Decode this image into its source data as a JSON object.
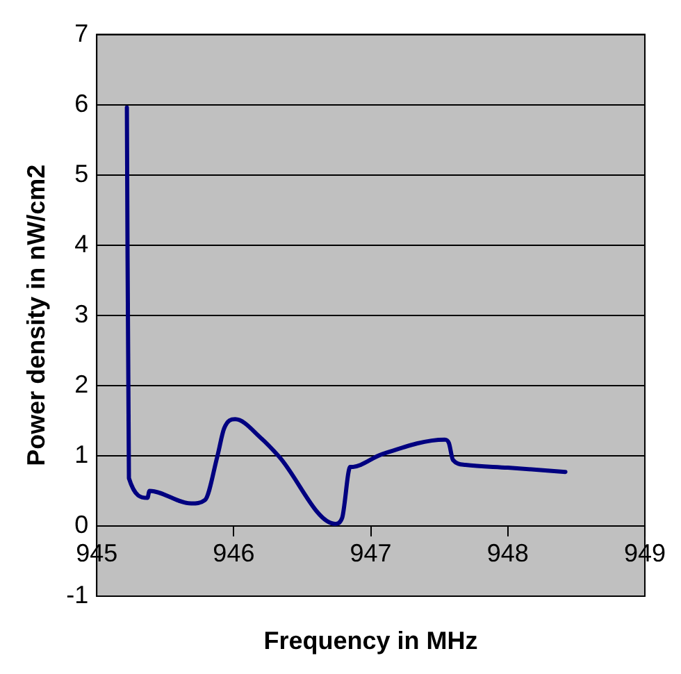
{
  "chart_data": {
    "type": "line",
    "xlabel": "Frequency in MHz",
    "ylabel": "Power density in nW/cm2",
    "x": [
      945.22,
      945.235,
      945.37,
      945.385,
      945.69,
      945.79,
      945.88,
      945.93,
      946.01,
      946.2,
      946.33,
      946.74,
      946.79,
      946.85,
      946.86,
      947.08,
      947.54,
      947.57,
      947.6,
      947.69,
      948.0,
      948.42
    ],
    "series": [
      {
        "color": "#000080",
        "values": [
          5.96,
          0.68,
          0.4,
          0.5,
          0.32,
          0.37,
          0.99,
          1.39,
          1.52,
          1.25,
          0.99,
          0.03,
          0.11,
          0.84,
          0.84,
          1.02,
          1.23,
          1.18,
          0.94,
          0.87,
          0.83,
          0.77
        ]
      }
    ],
    "xlim": [
      945,
      949
    ],
    "xticks": [
      945,
      946,
      947,
      948,
      949
    ],
    "ylim": [
      -1,
      7
    ],
    "yticks": [
      -1,
      0,
      1,
      2,
      3,
      4,
      5,
      6,
      7
    ],
    "grid": "y",
    "legend": false,
    "marker": "none",
    "line_style": "solid"
  }
}
